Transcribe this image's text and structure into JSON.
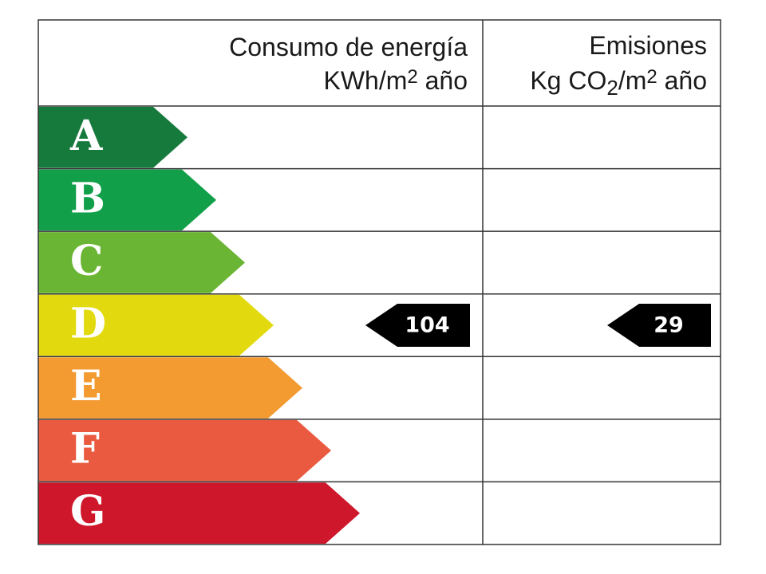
{
  "header": {
    "energy": {
      "title": "Consumo de energía",
      "unit": [
        {
          "text": "KWh/m"
        },
        {
          "text": "2",
          "style": "sup"
        },
        {
          "text": " año"
        }
      ]
    },
    "emissions": {
      "title": "Emisiones",
      "unit": [
        {
          "text": "Kg CO"
        },
        {
          "text": "2",
          "style": "sub"
        },
        {
          "text": "/m"
        },
        {
          "text": "2",
          "style": "sup"
        },
        {
          "text": " año"
        }
      ]
    }
  },
  "classes": [
    {
      "letter": "A",
      "color": "#177a3d"
    },
    {
      "letter": "B",
      "color": "#119f49"
    },
    {
      "letter": "C",
      "color": "#6bb534"
    },
    {
      "letter": "D",
      "color": "#e2da0f",
      "energy": 104,
      "emissions": 29
    },
    {
      "letter": "E",
      "color": "#f39a31"
    },
    {
      "letter": "F",
      "color": "#ea5a40"
    },
    {
      "letter": "G",
      "color": "#cf172b"
    }
  ]
}
